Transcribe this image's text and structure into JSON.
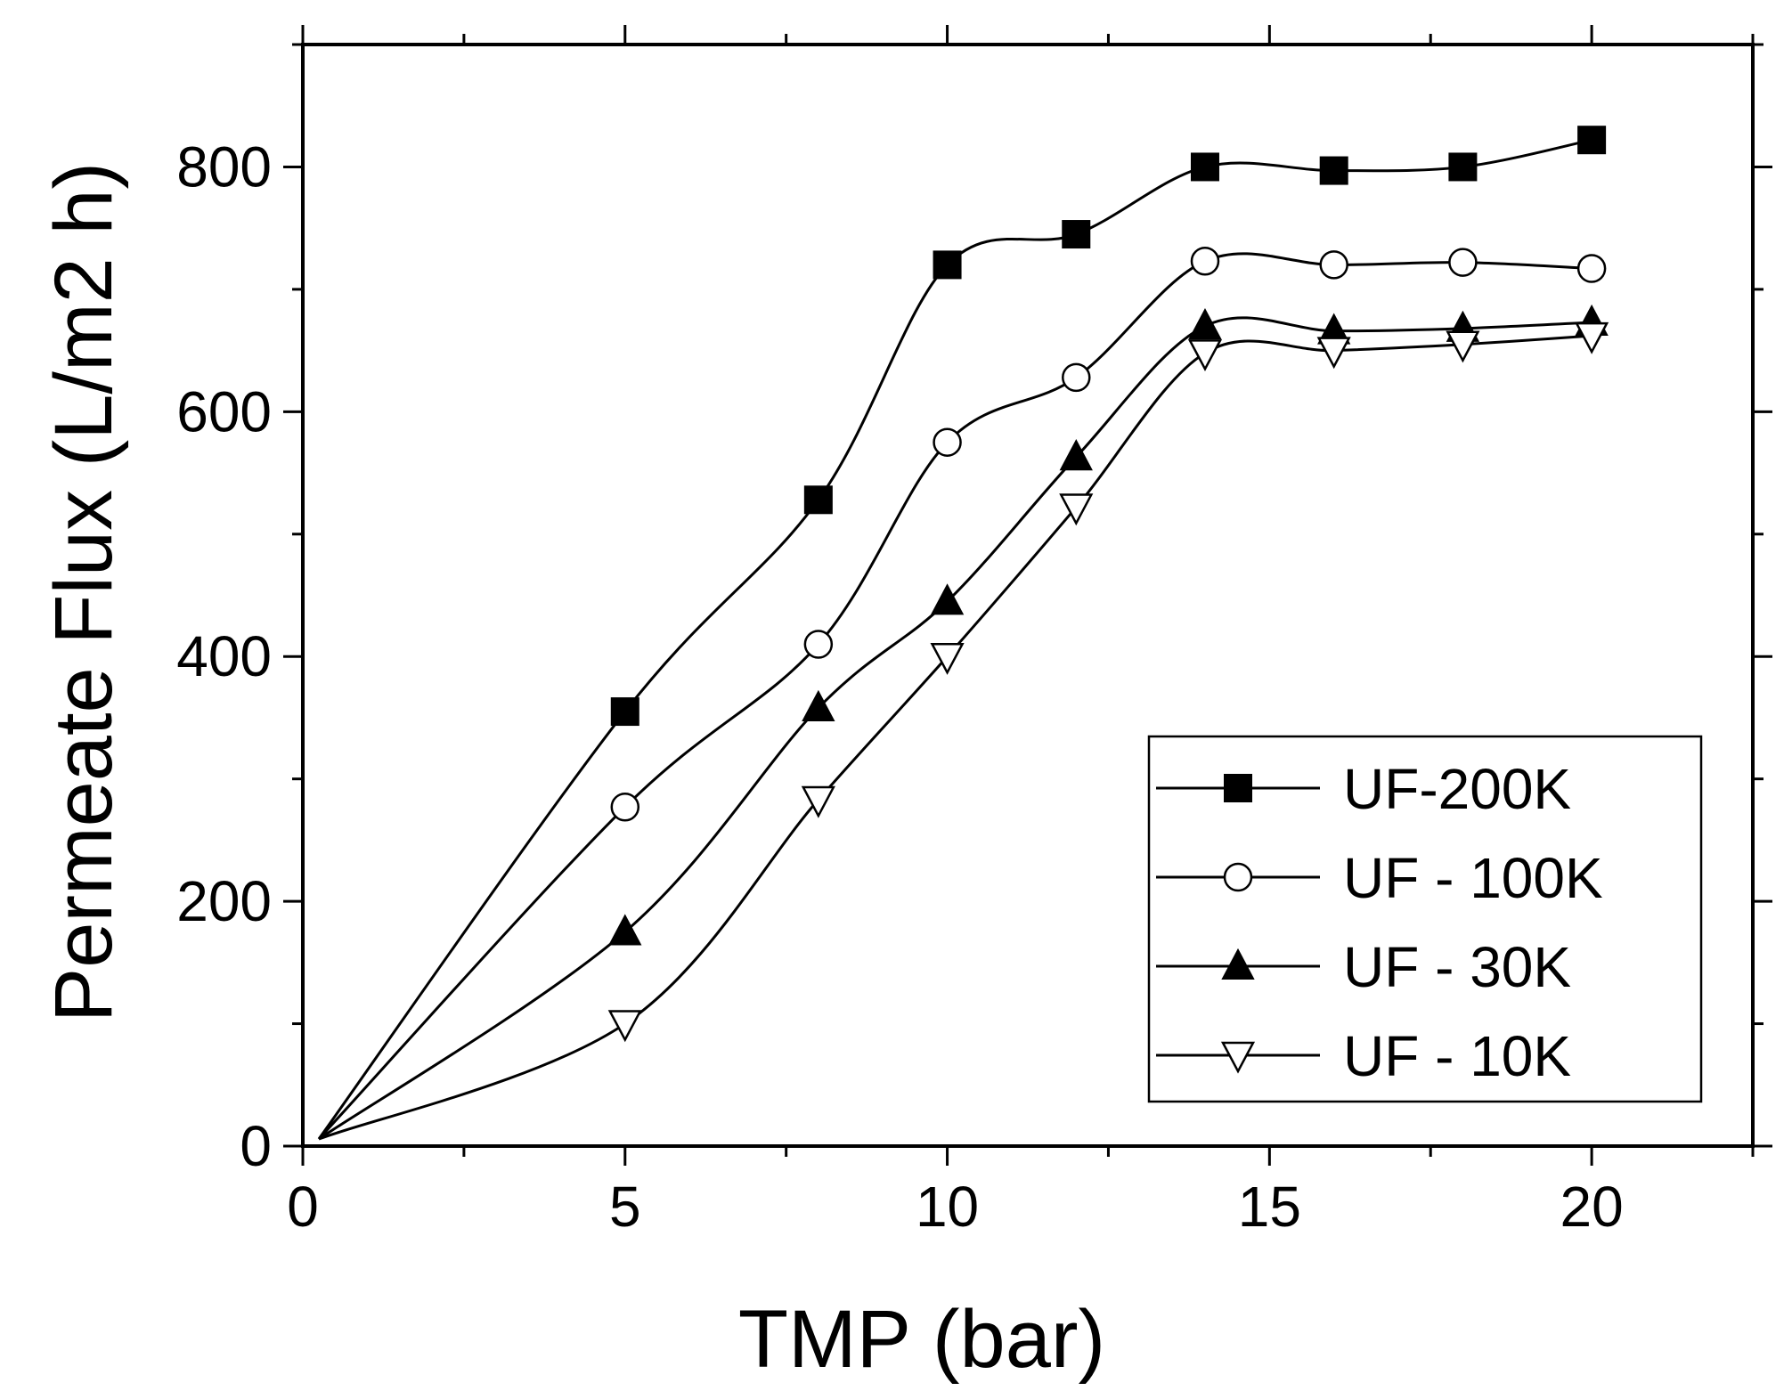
{
  "chart_data": {
    "type": "line",
    "title": "",
    "xlabel": "TMP (bar)",
    "ylabel": "Permeate Flux (L/m2 h)",
    "xlim": [
      0,
      22.5
    ],
    "ylim": [
      0,
      900
    ],
    "xticks": [
      0,
      5,
      10,
      15,
      20
    ],
    "yticks": [
      0,
      200,
      400,
      600,
      800
    ],
    "x_minor_step": 2.5,
    "y_minor_step": 100,
    "legend_position": "bottom-right",
    "series": [
      {
        "name": "UF-200K",
        "marker": "square-filled",
        "x": [
          0,
          5,
          8,
          10,
          12,
          14,
          16,
          18,
          20
        ],
        "y": [
          0,
          355,
          528,
          720,
          745,
          800,
          797,
          800,
          822
        ]
      },
      {
        "name": "UF - 100K",
        "marker": "circle-open",
        "x": [
          0,
          5,
          8,
          10,
          12,
          14,
          16,
          18,
          20
        ],
        "y": [
          0,
          277,
          410,
          575,
          628,
          723,
          720,
          722,
          717
        ]
      },
      {
        "name": "UF - 30K",
        "marker": "triangle-up-filled",
        "x": [
          0,
          5,
          8,
          10,
          12,
          14,
          16,
          18,
          20
        ],
        "y": [
          0,
          175,
          358,
          445,
          563,
          670,
          666,
          668,
          673
        ]
      },
      {
        "name": "UF - 10K",
        "marker": "triangle-down-open",
        "x": [
          0,
          5,
          8,
          10,
          12,
          14,
          16,
          18,
          20
        ],
        "y": [
          0,
          100,
          283,
          400,
          522,
          648,
          650,
          655,
          662
        ]
      }
    ]
  }
}
